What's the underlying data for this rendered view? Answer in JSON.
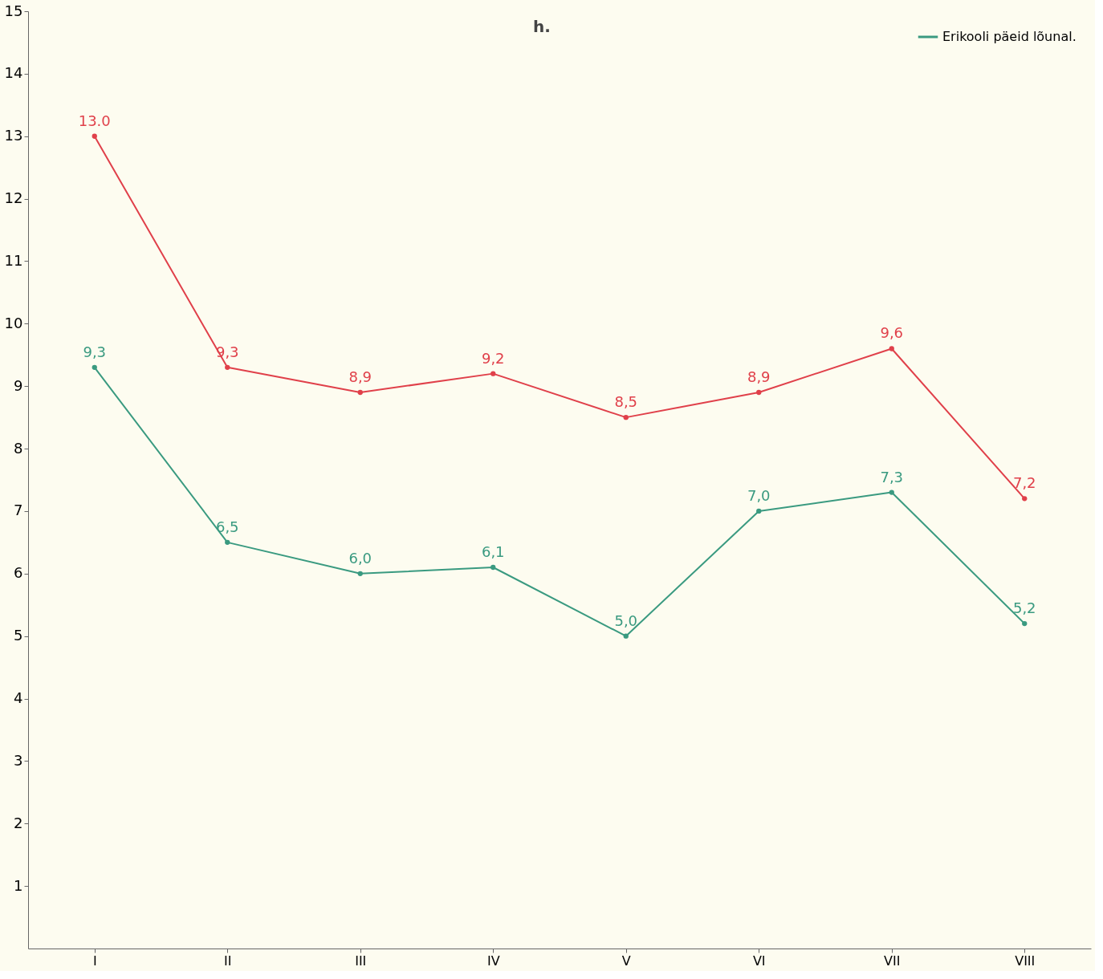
{
  "chart_data": {
    "type": "line",
    "categories": [
      "I",
      "II",
      "III",
      "IV",
      "V",
      "VI",
      "VII",
      "VIII"
    ],
    "series": [
      {
        "color": "#e0404a",
        "values": [
          13.0,
          9.3,
          8.9,
          9.2,
          8.5,
          8.9,
          9.6,
          7.2
        ],
        "value_labels": [
          "13.0",
          "9,3",
          "8,9",
          "9,2",
          "8,5",
          "8,9",
          "9,6",
          "7,2"
        ]
      },
      {
        "name": "Erikooli päeid lõunal.",
        "color": "#3a9a80",
        "values": [
          9.3,
          6.5,
          6.0,
          6.1,
          5.0,
          7.0,
          7.3,
          5.2
        ],
        "value_labels": [
          "9,3",
          "6,5",
          "6,0",
          "6,1",
          "5,0",
          "7,0",
          "7,3",
          "5,2"
        ]
      }
    ],
    "ylim": [
      0,
      15
    ],
    "yticks": [
      1,
      2,
      3,
      4,
      5,
      6,
      7,
      8,
      9,
      10,
      11,
      12,
      13,
      14,
      15
    ],
    "annotations": [
      "h."
    ],
    "grid": false,
    "legend": "top right",
    "marker": "circle",
    "line_style": "solid"
  }
}
